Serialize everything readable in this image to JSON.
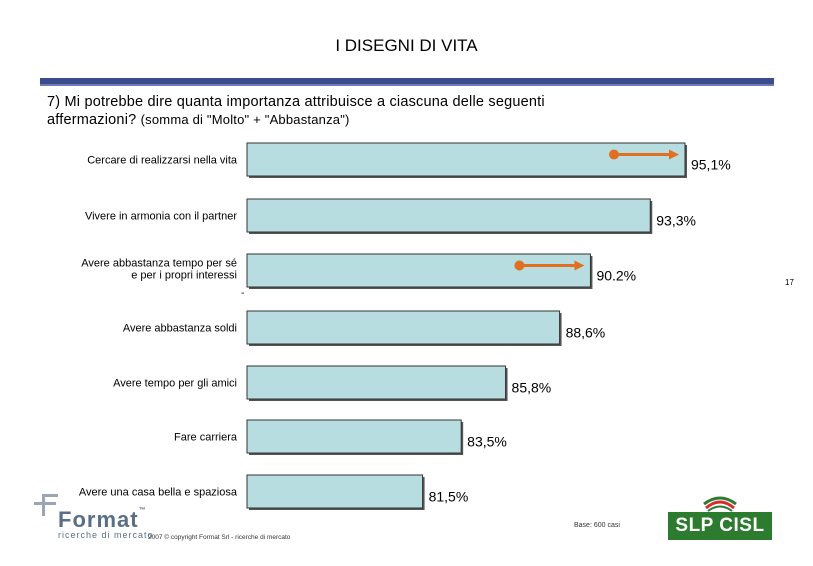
{
  "header": {
    "title": "I DISEGNI DI VITA",
    "question_line1": "7) Mi potrebbe dire quanta importanza attribuisce a ciascuna delle seguenti",
    "question_line2": "affermazioni?",
    "question_sub": "(somma di \"Molto\" + \"Abbastanza\")"
  },
  "chart_data": {
    "type": "bar",
    "orientation": "horizontal",
    "categories": [
      "Cercare di realizzarsi nella vita",
      "Vivere in armonia con il partner",
      "Avere abbastanza tempo per sé e per i propri interessi",
      "Avere abbastanza soldi",
      "Avere tempo per gli amici",
      "Fare carriera",
      "Avere una casa bella e spaziosa"
    ],
    "category_lines": [
      [
        "Cercare di realizzarsi nella vita"
      ],
      [
        "Vivere in armonia con il partner"
      ],
      [
        "Avere abbastanza tempo per sé",
        "e per i propri interessi"
      ],
      [
        "Avere abbastanza soldi"
      ],
      [
        "Avere tempo per gli amici"
      ],
      [
        "Fare carriera"
      ],
      [
        "Avere una casa bella e spaziosa"
      ]
    ],
    "values": [
      95.1,
      93.3,
      90.2,
      88.6,
      85.8,
      83.5,
      81.5
    ],
    "labels": [
      "95,1%",
      "93,3%",
      "90.2%",
      "88,6%",
      "85,8%",
      "83,5%",
      "81,5%"
    ],
    "trend_arrows": [
      0,
      2
    ],
    "bar_color": "#b7dde0",
    "arrow_color": "#e0701f",
    "xlim": [
      72.4,
      96.5
    ],
    "title": "I DISEGNI DI VITA"
  },
  "footer": {
    "page_number": "17",
    "dash": "-",
    "logo_word": "Format",
    "logo_tm": "™",
    "logo_sub": "ricerche di mercato",
    "copyright": "2007 © copyright Format Srl - ricerche di mercato",
    "base": "Base: 600 casi",
    "union": "SLP CISL"
  }
}
